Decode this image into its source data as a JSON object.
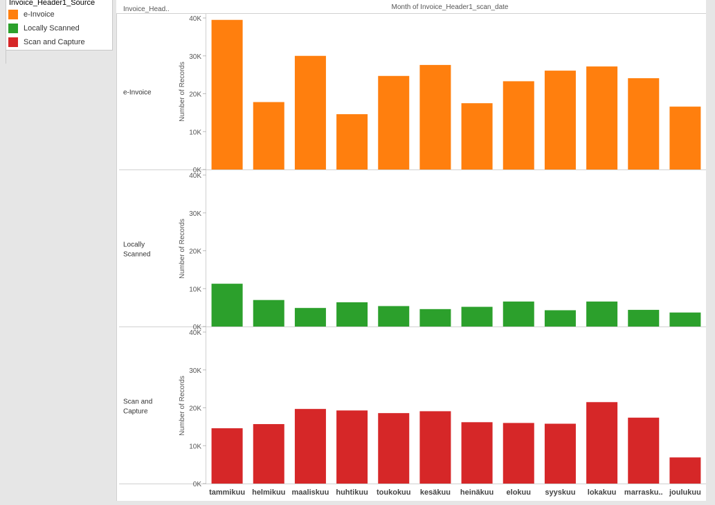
{
  "legend": {
    "title": "Invoice_Header1_Source",
    "items": [
      {
        "label": "e-Invoice",
        "color": "#ff7f0e"
      },
      {
        "label": "Locally Scanned",
        "color": "#2ca02c"
      },
      {
        "label": "Scan and Capture",
        "color": "#d62728"
      }
    ]
  },
  "header": {
    "row_field": "Invoice_Head..",
    "column_title": "Month of Invoice_Header1_scan_date"
  },
  "chart_data": {
    "type": "bar",
    "title": "Month of Invoice_Header1_scan_date",
    "ylabel": "Number of Records",
    "ylim": [
      0,
      40000
    ],
    "y_ticks": [
      "0K",
      "10K",
      "20K",
      "30K",
      "40K"
    ],
    "categories": [
      "tammikuu",
      "helmikuu",
      "maaliskuu",
      "huhtikuu",
      "toukokuu",
      "kesäkuu",
      "heinäkuu",
      "elokuu",
      "syyskuu",
      "lokakuu",
      "marrasku..",
      "joulukuu"
    ],
    "series": [
      {
        "name": "e-Invoice",
        "color": "#ff7f0e",
        "values": [
          39500,
          17800,
          30000,
          14600,
          24700,
          27600,
          17500,
          23300,
          26100,
          27200,
          24100,
          16600
        ]
      },
      {
        "name": "Locally Scanned",
        "color": "#2ca02c",
        "values": [
          11300,
          7000,
          4900,
          6400,
          5400,
          4600,
          5200,
          6600,
          4300,
          6600,
          4400,
          3700
        ]
      },
      {
        "name": "Scan and Capture",
        "color": "#d62728",
        "values": [
          14600,
          15700,
          19700,
          19300,
          18600,
          19100,
          16200,
          16000,
          15800,
          21500,
          17400,
          6900
        ]
      }
    ],
    "row_labels": [
      [
        "e-Invoice"
      ],
      [
        "Locally",
        "Scanned"
      ],
      [
        "Scan and",
        "Capture"
      ]
    ]
  }
}
